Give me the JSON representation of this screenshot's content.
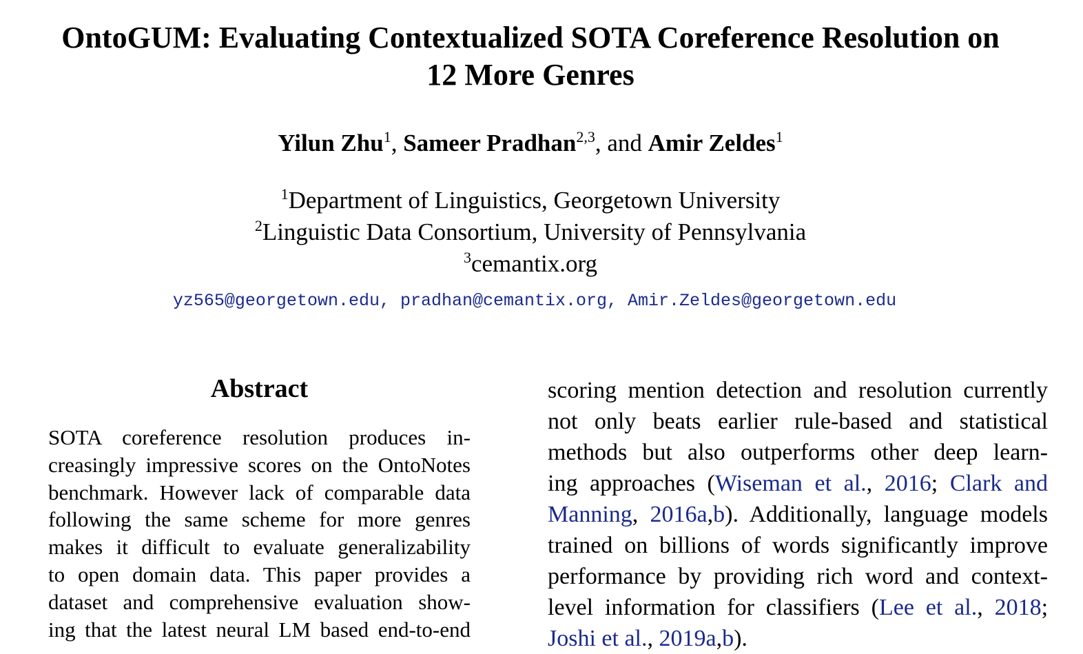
{
  "paper": {
    "title_line1": "OntoGUM: Evaluating Contextualized SOTA Coreference Resolution on",
    "title_line2": "12 More Genres",
    "authors": [
      {
        "name": "Yilun Zhu",
        "sup": "1",
        "sep": ", "
      },
      {
        "name": "Sameer Pradhan",
        "sup": "2,3",
        "sep": ", and "
      },
      {
        "name": "Amir Zeldes",
        "sup": "1",
        "sep": ""
      }
    ],
    "affiliations": [
      {
        "sup": "1",
        "text": "Department of Linguistics, Georgetown University"
      },
      {
        "sup": "2",
        "text": "Linguistic Data Consortium, University of Pennsylvania"
      },
      {
        "sup": "3",
        "text": "cemantix.org"
      }
    ],
    "emails": "yz565@georgetown.edu, pradhan@cemantix.org, Amir.Zeldes@georgetown.edu",
    "abstract": {
      "heading": "Abstract",
      "lines": [
        "SOTA coreference resolution produces in-",
        "creasingly impressive scores on the OntoNotes",
        "benchmark. However lack of comparable data",
        "following the same scheme for more genres",
        "makes it difficult to evaluate generalizability",
        "to open domain data. This paper provides a",
        "dataset and comprehensive evaluation show-",
        "ing that the latest neural LM based end-to-end"
      ]
    },
    "right_column": {
      "line1": "scoring mention detection and resolution currently",
      "line2": "not only beats earlier rule-based and statistical",
      "line3": "methods but also outperforms other deep learn-",
      "line4_pre": "ing approaches (",
      "cite1": "Wiseman et al.",
      "line4_comma": ", ",
      "cite1_year": "2016",
      "line4_semi": "; ",
      "cite2_a": "Clark and",
      "cite2_b": "Manning",
      "line5_comma": ", ",
      "cite2_year": "2016a",
      "line5_comma2": ",",
      "cite2_year_b": "b",
      "line5_post": "). Additionally, language models",
      "line6": "trained on billions of words significantly improve",
      "line7": "performance by providing rich word and context-",
      "line8_pre": "level information for classifiers (",
      "cite3": "Lee et al.",
      "line8_comma": ", ",
      "cite3_year": "2018",
      "line8_semi": ";",
      "cite4": "Joshi et al.",
      "line9_comma": ", ",
      "cite4_year": "2019a",
      "line9_comma2": ",",
      "cite4_year_b": "b",
      "line9_post": ")."
    }
  }
}
